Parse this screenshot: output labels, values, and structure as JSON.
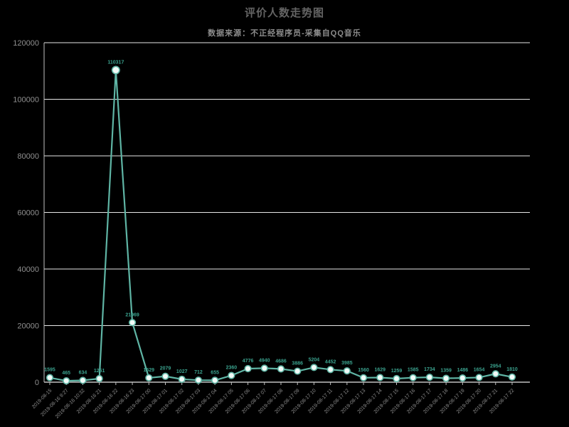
{
  "header": {
    "title": "评价人数走势图",
    "subtitle": "数据来源：不正经程序员-采集自QQ音乐"
  },
  "chart_data": {
    "type": "line",
    "title": "评价人数走势图",
    "subtitle": "数据来源：不正经程序员-采集自QQ音乐",
    "xlabel": "",
    "ylabel": "",
    "ylim": [
      0,
      120000
    ],
    "yticks": [
      0,
      20000,
      40000,
      60000,
      80000,
      100000,
      120000
    ],
    "grid": true,
    "legend_position": "none",
    "x": [
      "2019-08-15",
      "2019-08-16 9:27",
      "2019-08-16 10:32",
      "2019-08-16 21",
      "2019-08-16 22",
      "2019-08-16 23",
      "2019-08-17 00",
      "2019-08-17 01",
      "2019-08-17 02",
      "2019-08-17 03",
      "2019-08-17 04",
      "2019-08-17 05",
      "2019-08-17 06",
      "2019-08-17 07",
      "2019-08-17 08",
      "2019-08-17 09",
      "2019-08-17 10",
      "2019-08-17 11",
      "2019-08-17 12",
      "2019-08-17 13",
      "2019-08-17 14",
      "2019-08-17 15",
      "2019-08-17 16",
      "2019-08-17 17",
      "2019-08-17 18",
      "2019-08-17 19",
      "2019-08-17 20",
      "2019-08-17 21",
      "2019-08-17 22"
    ],
    "values": [
      1595,
      465,
      634,
      1261,
      110317,
      21069,
      1529,
      2079,
      1027,
      712,
      655,
      2360,
      4776,
      4940,
      4686,
      3886,
      5204,
      4452,
      3985,
      1560,
      1629,
      1259,
      1585,
      1734,
      1359,
      1486,
      1654,
      2954,
      1810
    ],
    "point_labels_visible": true
  },
  "colors": {
    "background": "#000000",
    "line": "#5fb5a5",
    "marker_fill": "#f2fbf8",
    "marker_stroke": "#5fb5a5",
    "point_label": "#3aa18d",
    "gridline": "#e6e6e6",
    "spine": "#c0c0c0",
    "axis_tick_text": "#8f8f8f",
    "title_text": "#646464",
    "subtitle_text": "#8c8c8c"
  }
}
